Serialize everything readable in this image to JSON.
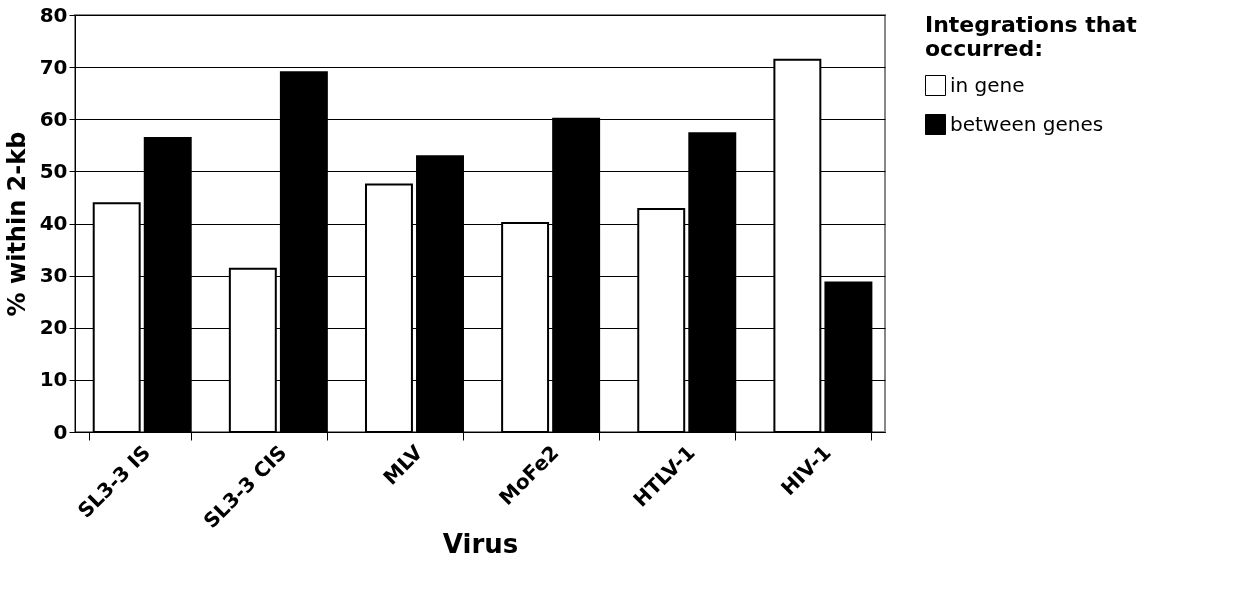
{
  "chart_data": {
    "type": "bar",
    "xlabel": "Virus",
    "ylabel": "% within 2-kb",
    "legend_title": "Integrations that occurred:",
    "categories": [
      "SL3-3 IS",
      "SL3-3 CIS",
      "MLV",
      "MoFe2",
      "HTLV-1",
      "HIV-1"
    ],
    "series": [
      {
        "name": "in gene",
        "color": "#ffffff",
        "values": [
          43.9,
          31.3,
          47.5,
          40.1,
          42.8,
          71.4
        ]
      },
      {
        "name": "between genes",
        "color": "#000000",
        "values": [
          56.4,
          69.0,
          52.9,
          60.1,
          57.3,
          28.7
        ]
      }
    ],
    "ylim": [
      0,
      80
    ],
    "yticks": [
      0,
      10,
      20,
      30,
      40,
      50,
      60,
      70,
      80
    ],
    "grid": "y",
    "legend": "right"
  }
}
